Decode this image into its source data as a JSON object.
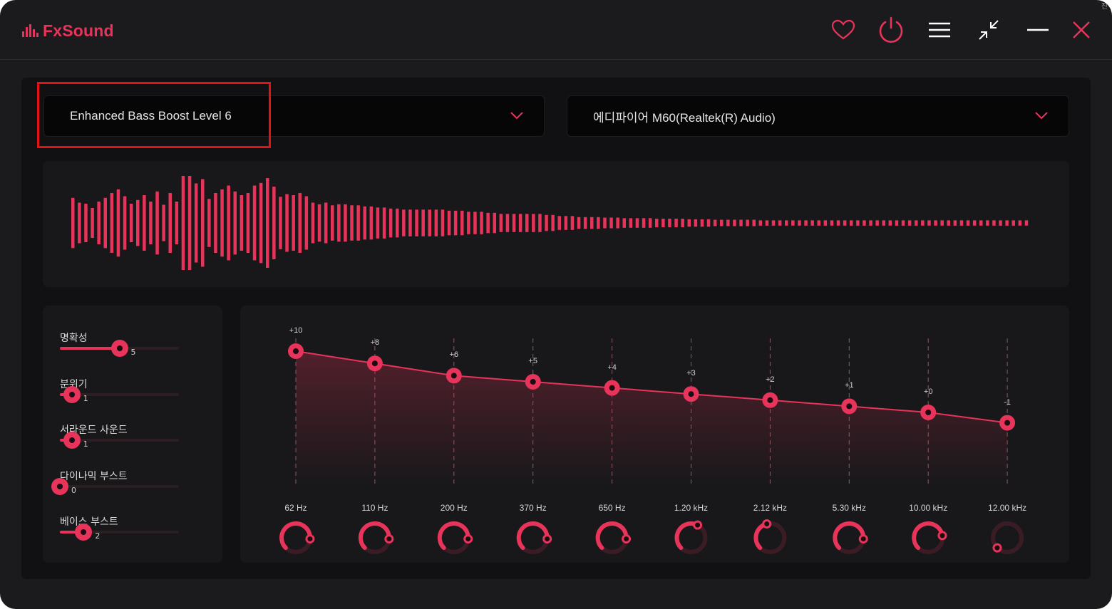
{
  "app": {
    "name": "FxSound",
    "accent_color": "#e8345a"
  },
  "titlebar": {
    "icons": [
      "heart-icon",
      "power-icon",
      "menu-icon",
      "minimize-to-mini-icon",
      "minimize-icon",
      "close-icon"
    ]
  },
  "corner_char": "진",
  "preset": {
    "selected": "Enhanced Bass Boost Level 6",
    "highlighted": true
  },
  "output_device": {
    "selected": "에디파이어 M60(Realtek(R) Audio)"
  },
  "effects": [
    {
      "label": "명확성",
      "value": "5",
      "level": 0.5
    },
    {
      "label": "분위기",
      "value": "1",
      "level": 0.1
    },
    {
      "label": "서라운드 사운드",
      "value": "1",
      "level": 0.1
    },
    {
      "label": "다이나믹 부스트",
      "value": "0",
      "level": 0.0
    },
    {
      "label": "베이스 부스트",
      "value": "2",
      "level": 0.2
    }
  ],
  "equalizer": {
    "bands": [
      {
        "freq": "62 Hz",
        "gain": "+10",
        "gain_value": 10
      },
      {
        "freq": "110 Hz",
        "gain": "+8",
        "gain_value": 8
      },
      {
        "freq": "200 Hz",
        "gain": "+6",
        "gain_value": 6
      },
      {
        "freq": "370 Hz",
        "gain": "+5",
        "gain_value": 5
      },
      {
        "freq": "650 Hz",
        "gain": "+4",
        "gain_value": 4
      },
      {
        "freq": "1.20 kHz",
        "gain": "+3",
        "gain_value": 3
      },
      {
        "freq": "2.12 kHz",
        "gain": "+2",
        "gain_value": 2
      },
      {
        "freq": "5.30 kHz",
        "gain": "+1",
        "gain_value": 1
      },
      {
        "freq": "10.00 kHz",
        "gain": "+0",
        "gain_value": 0
      },
      {
        "freq": "12.00 kHz",
        "gain": "-1",
        "gain_value": -1
      }
    ]
  },
  "visualizer": {
    "levels": [
      0.47,
      0.38,
      0.36,
      0.28,
      0.4,
      0.47,
      0.56,
      0.63,
      0.5,
      0.36,
      0.43,
      0.52,
      0.4,
      0.59,
      0.34,
      0.56,
      0.4,
      0.88,
      0.88,
      0.74,
      0.82,
      0.45,
      0.56,
      0.63,
      0.7,
      0.59,
      0.52,
      0.56,
      0.7,
      0.75,
      0.84,
      0.68,
      0.49,
      0.54,
      0.52,
      0.56,
      0.5,
      0.38,
      0.35,
      0.38,
      0.33,
      0.35,
      0.35,
      0.33,
      0.33,
      0.31,
      0.31,
      0.29,
      0.29,
      0.27,
      0.27,
      0.25,
      0.25,
      0.25,
      0.25,
      0.25,
      0.25,
      0.25,
      0.23,
      0.23,
      0.23,
      0.21,
      0.21,
      0.21,
      0.19,
      0.19,
      0.17,
      0.17,
      0.17,
      0.17,
      0.17,
      0.17,
      0.17,
      0.15,
      0.15,
      0.13,
      0.13,
      0.13,
      0.11,
      0.11,
      0.11,
      0.11,
      0.1,
      0.1,
      0.1,
      0.09,
      0.09,
      0.09,
      0.09,
      0.09,
      0.08,
      0.08,
      0.08,
      0.08,
      0.08,
      0.07,
      0.07,
      0.07,
      0.07,
      0.06,
      0.06,
      0.06,
      0.06,
      0.06,
      0.06,
      0.06,
      0.05,
      0.05,
      0.05,
      0.05,
      0.05,
      0.05,
      0.05,
      0.05,
      0.05,
      0.05,
      0.05,
      0.05,
      0.05,
      0.05,
      0.05,
      0.05,
      0.05,
      0.05,
      0.05,
      0.05,
      0.05,
      0.05,
      0.05,
      0.05,
      0.05,
      0.05,
      0.05,
      0.05,
      0.05,
      0.05,
      0.05,
      0.05,
      0.05,
      0.05,
      0.05,
      0.05,
      0.05,
      0.05,
      0.05,
      0.05,
      0.05,
      0.05
    ]
  }
}
